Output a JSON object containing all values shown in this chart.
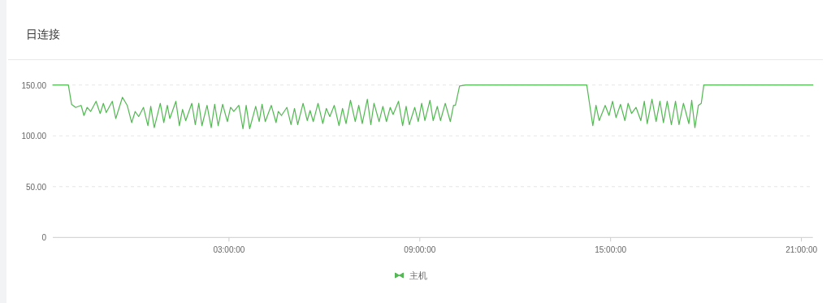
{
  "chart_data": {
    "type": "line",
    "title": "日连接",
    "legend": "bottom",
    "grid": "y",
    "marker": "none",
    "line_style": "solid",
    "xlim": [
      -2.54,
      21.36
    ],
    "ylim": [
      0,
      150
    ],
    "xticks": [
      {
        "value": 3,
        "label": "03:00:00"
      },
      {
        "value": 9,
        "label": "09:00:00"
      },
      {
        "value": 15,
        "label": "15:00:00"
      },
      {
        "value": 21,
        "label": "21:00:00"
      }
    ],
    "yticks": [
      {
        "value": 0,
        "label": "0"
      },
      {
        "value": 50,
        "label": "50.00"
      },
      {
        "value": 100,
        "label": "100.00"
      },
      {
        "value": 150,
        "label": "150.00"
      }
    ],
    "series": [
      {
        "name": "主机",
        "color": "#52b852",
        "x": [
          -2.54,
          -2.05,
          -1.95,
          -1.82,
          -1.65,
          -1.56,
          -1.46,
          -1.35,
          -1.18,
          -1.05,
          -0.95,
          -0.86,
          -0.67,
          -0.56,
          -0.35,
          -0.2,
          -0.06,
          0.05,
          0.16,
          0.31,
          0.45,
          0.54,
          0.65,
          0.84,
          0.95,
          1.06,
          1.14,
          1.33,
          1.44,
          1.54,
          1.64,
          1.83,
          1.94,
          2.05,
          2.15,
          2.31,
          2.44,
          2.55,
          2.66,
          2.8,
          2.95,
          3.05,
          3.15,
          3.31,
          3.44,
          3.54,
          3.65,
          3.84,
          3.95,
          4.04,
          4.14,
          4.33,
          4.48,
          4.55,
          4.65,
          4.82,
          4.95,
          5.06,
          5.16,
          5.33,
          5.46,
          5.55,
          5.65,
          5.8,
          5.95,
          6.06,
          6.17,
          6.31,
          6.46,
          6.57,
          6.68,
          6.82,
          6.97,
          7.08,
          7.19,
          7.35,
          7.46,
          7.56,
          7.72,
          7.84,
          7.95,
          8.07,
          8.16,
          8.33,
          8.46,
          8.57,
          8.67,
          8.84,
          8.95,
          9.06,
          9.16,
          9.32,
          9.42,
          9.55,
          9.65,
          9.8,
          9.96,
          10.06,
          10.12,
          10.25,
          10.44,
          14.25,
          14.44,
          14.54,
          14.64,
          14.83,
          14.95,
          15.06,
          15.17,
          15.31,
          15.45,
          15.55,
          15.66,
          15.8,
          15.95,
          16.06,
          16.15,
          16.3,
          16.43,
          16.55,
          16.66,
          16.78,
          16.91,
          17.04,
          17.15,
          17.29,
          17.46,
          17.55,
          17.65,
          17.76,
          17.85,
          17.93,
          21.36
        ],
        "values": [
          150,
          150,
          131,
          128,
          130,
          120,
          128,
          124,
          134,
          122,
          132,
          123,
          134,
          117,
          138,
          130,
          113,
          124,
          119,
          128,
          110,
          129,
          108,
          132,
          113,
          130,
          117,
          134,
          110,
          126,
          115,
          132,
          111,
          132,
          110,
          130,
          108,
          131,
          110,
          131,
          114,
          128,
          124,
          130,
          107,
          130,
          107,
          129,
          114,
          131,
          114,
          130,
          113,
          124,
          120,
          128,
          111,
          127,
          111,
          132,
          115,
          125,
          114,
          132,
          112,
          127,
          119,
          130,
          110,
          127,
          112,
          135,
          114,
          130,
          112,
          136,
          111,
          132,
          114,
          129,
          114,
          128,
          121,
          134,
          110,
          129,
          111,
          128,
          114,
          132,
          115,
          135,
          115,
          129,
          115,
          132,
          114,
          130,
          130,
          149,
          150,
          150,
          110,
          130,
          115,
          130,
          120,
          134,
          118,
          131,
          115,
          132,
          122,
          128,
          115,
          134,
          112,
          136,
          114,
          134,
          113,
          134,
          111,
          134,
          111,
          132,
          112,
          135,
          108,
          130,
          132,
          150,
          150
        ]
      }
    ]
  }
}
